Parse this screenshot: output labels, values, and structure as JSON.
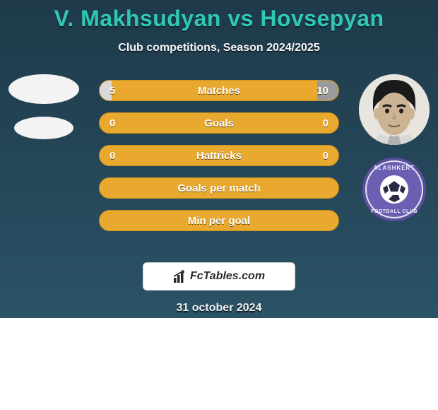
{
  "colors": {
    "card_bg_top": "#1e3a4a",
    "card_bg_bottom": "#2b5266",
    "title_color": "#30c7b5",
    "title_shadow": "#0d232d",
    "subtitle_color": "#f5f5f5",
    "subtitle_shadow": "#0b1a22",
    "row_bg": "#e8a92e",
    "row_border": "#c98f1f",
    "fill_left": "#d9d9d9",
    "fill_right": "#9a9a9a",
    "stat_text": "#ffffff",
    "stat_shadow": "#5a4410",
    "badge_bg": "#ffffff",
    "badge_border": "#d0d0d0",
    "badge_text": "#2a2a2a",
    "date_color": "#f0f0f0",
    "avatar_empty": "#f3f3f3",
    "face_skin": "#cbb393",
    "face_hair": "#1a1a1a",
    "face_bg": "#e8e4de",
    "club_outer": "#e6e6ee",
    "club_ring": "#5a4ea0",
    "club_inner": "#6a5fb0",
    "club_text": "#f0eeff",
    "ball_white": "#ffffff",
    "ball_dark": "#2a2a44"
  },
  "title": "V. Makhsudyan vs Hovsepyan",
  "subtitle": "Club competitions, Season 2024/2025",
  "rows": [
    {
      "label": "Matches",
      "left": "5",
      "right": "10",
      "left_pct": 5,
      "right_pct": 9
    },
    {
      "label": "Goals",
      "left": "0",
      "right": "0",
      "left_pct": 0,
      "right_pct": 0
    },
    {
      "label": "Hattricks",
      "left": "0",
      "right": "0",
      "left_pct": 0,
      "right_pct": 0
    },
    {
      "label": "Goals per match",
      "left": "",
      "right": "",
      "left_pct": 0,
      "right_pct": 0
    },
    {
      "label": "Min per goal",
      "left": "",
      "right": "",
      "left_pct": 0,
      "right_pct": 0
    }
  ],
  "footer_brand": "FcTables.com",
  "footer_date": "31 october 2024",
  "club_name_top": "ALASHKERT",
  "club_name_bot": "FOOTBALL CLUB"
}
